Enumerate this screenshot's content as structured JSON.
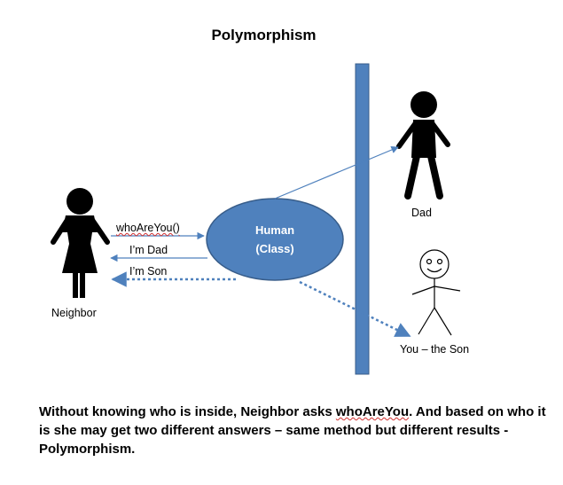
{
  "title": "Polymorphism",
  "class_box": {
    "line1": "Human",
    "line2": "(Class)"
  },
  "actors": {
    "neighbor": "Neighbor",
    "dad": "Dad",
    "son": "You – the Son"
  },
  "messages": {
    "ask": "whoAreYou()",
    "reply_dad": "I’m Dad",
    "reply_son": "I’m Son"
  },
  "caption": {
    "part1": "Without knowing who is inside, Neighbor asks ",
    "method": "whoAreYou",
    "part2": ". And based on who it is she may get two different answers – same method but different results - Polymorphism."
  },
  "colors": {
    "ellipse": "#4f81bd",
    "ellipse_stroke": "#385d8a",
    "arrow": "#4f81bd",
    "wall": "#4f81bd"
  }
}
